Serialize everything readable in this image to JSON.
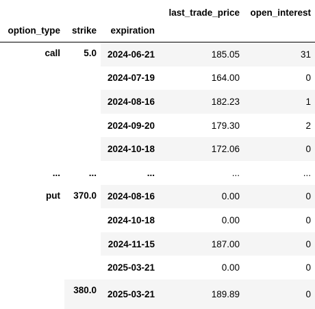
{
  "table": {
    "index_names": [
      "option_type",
      "strike",
      "expiration"
    ],
    "column_names": [
      "last_trade_price",
      "open_interest"
    ],
    "rows": [
      {
        "option_type": "call",
        "strike": "5.0",
        "expiration": "2024-06-21",
        "last_trade_price": "185.05",
        "open_interest": "31"
      },
      {
        "option_type": "",
        "strike": "",
        "expiration": "2024-07-19",
        "last_trade_price": "164.00",
        "open_interest": "0"
      },
      {
        "option_type": "",
        "strike": "",
        "expiration": "2024-08-16",
        "last_trade_price": "182.23",
        "open_interest": "1"
      },
      {
        "option_type": "",
        "strike": "",
        "expiration": "2024-09-20",
        "last_trade_price": "179.30",
        "open_interest": "2"
      },
      {
        "option_type": "",
        "strike": "",
        "expiration": "2024-10-18",
        "last_trade_price": "172.06",
        "open_interest": "0"
      },
      {
        "option_type": "...",
        "strike": "...",
        "expiration": "...",
        "last_trade_price": "...",
        "open_interest": "..."
      },
      {
        "option_type": "put",
        "strike": "370.0",
        "expiration": "2024-08-16",
        "last_trade_price": "0.00",
        "open_interest": "0"
      },
      {
        "option_type": "",
        "strike": "",
        "expiration": "2024-10-18",
        "last_trade_price": "0.00",
        "open_interest": "0"
      },
      {
        "option_type": "",
        "strike": "",
        "expiration": "2024-11-15",
        "last_trade_price": "187.00",
        "open_interest": "0"
      },
      {
        "option_type": "",
        "strike": "",
        "expiration": "2025-03-21",
        "last_trade_price": "0.00",
        "open_interest": "0"
      },
      {
        "option_type": "",
        "strike": "380.0",
        "expiration": "2025-03-21",
        "last_trade_price": "189.89",
        "open_interest": "0"
      }
    ]
  }
}
